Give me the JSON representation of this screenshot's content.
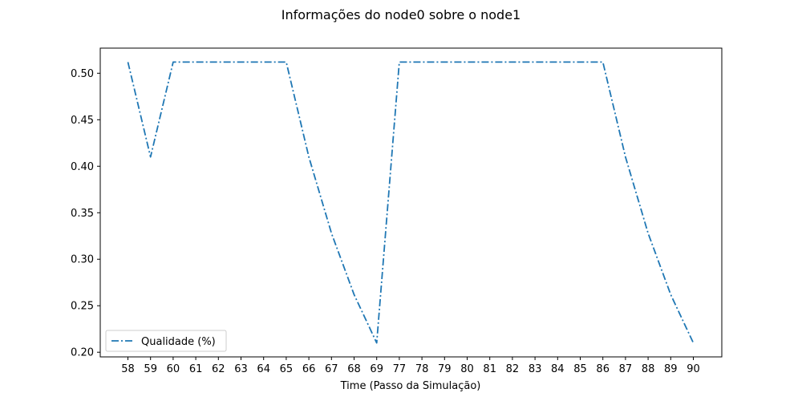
{
  "chart_data": {
    "type": "line",
    "title": "Informações do node0 sobre o node1",
    "xlabel": "Time (Passo da Simulação)",
    "ylabel": "",
    "categories": [
      "58",
      "59",
      "60",
      "61",
      "62",
      "63",
      "64",
      "65",
      "66",
      "67",
      "68",
      "69",
      "77",
      "78",
      "79",
      "80",
      "81",
      "82",
      "83",
      "84",
      "85",
      "86",
      "87",
      "88",
      "89",
      "90"
    ],
    "series": [
      {
        "name": "Qualidade (%)",
        "color": "#1f77b4",
        "line_style": "dashdot",
        "values": [
          0.512,
          0.41,
          0.512,
          0.512,
          0.512,
          0.512,
          0.512,
          0.512,
          0.41,
          0.328,
          0.262,
          0.21,
          0.512,
          0.512,
          0.512,
          0.512,
          0.512,
          0.512,
          0.512,
          0.512,
          0.512,
          0.512,
          0.41,
          0.328,
          0.262,
          0.21
        ]
      }
    ],
    "yticks": [
      0.2,
      0.25,
      0.3,
      0.35,
      0.4,
      0.45,
      0.5
    ],
    "ytick_labels": [
      "0.20",
      "0.25",
      "0.30",
      "0.35",
      "0.40",
      "0.45",
      "0.50"
    ],
    "ylim": [
      0.195,
      0.527
    ],
    "grid": false,
    "legend_position": "lower-left"
  }
}
